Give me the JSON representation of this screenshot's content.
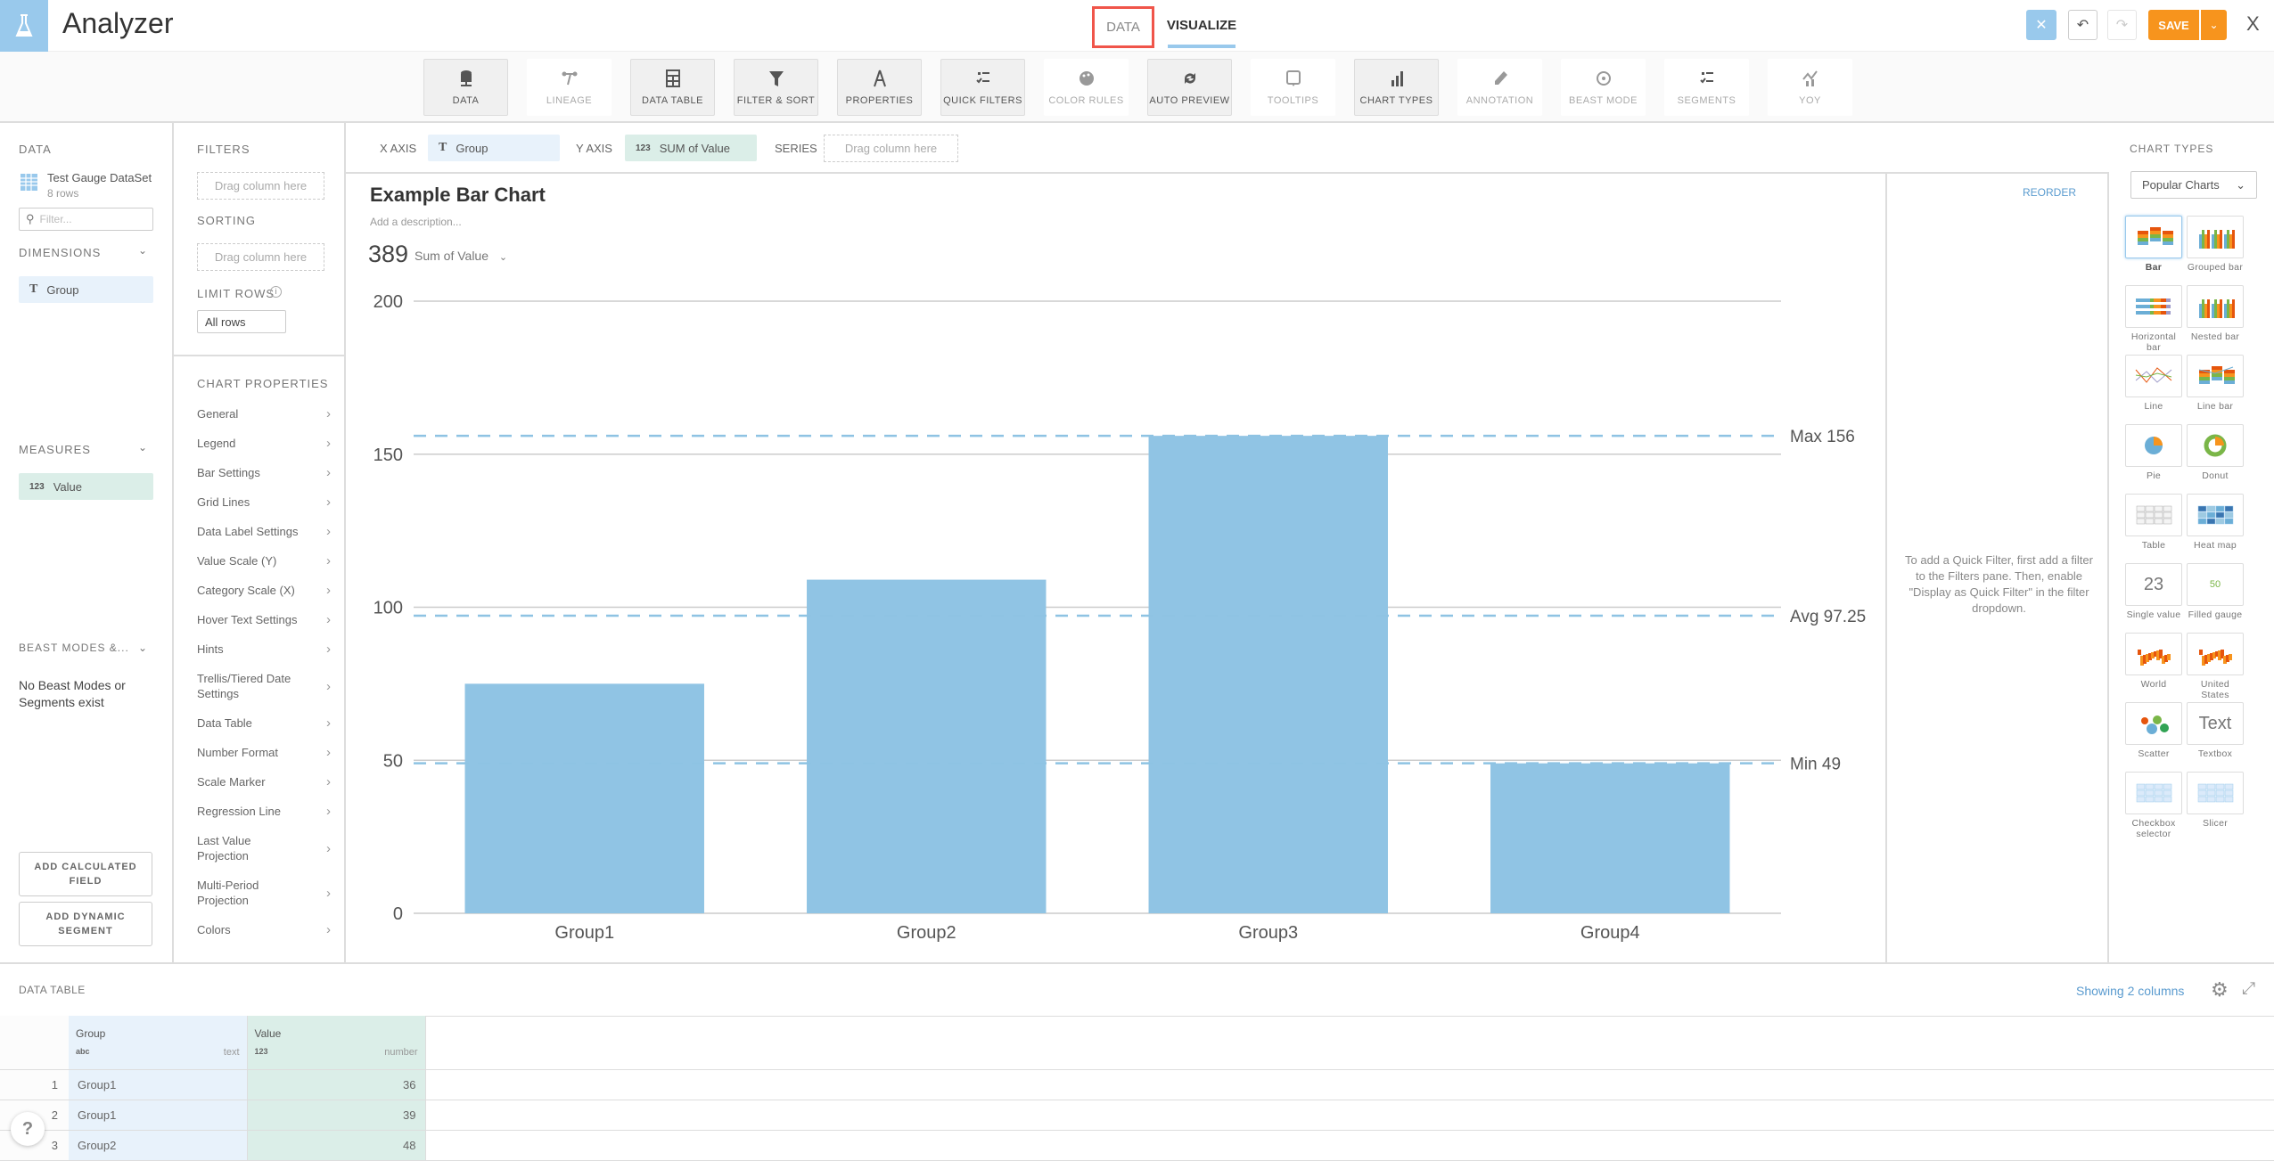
{
  "header": {
    "title": "Analyzer",
    "tabs": [
      {
        "label": "DATA"
      },
      {
        "label": "VISUALIZE",
        "active": true
      }
    ],
    "save_label": "SAVE",
    "close_label": "X"
  },
  "toolbar": [
    {
      "label": "DATA",
      "icon": "database-icon",
      "active": true
    },
    {
      "label": "LINEAGE",
      "icon": "lineage-icon",
      "active": false
    },
    {
      "label": "DATA TABLE",
      "icon": "table-icon",
      "active": true
    },
    {
      "label": "FILTER & SORT",
      "icon": "filter-icon",
      "active": true
    },
    {
      "label": "PROPERTIES",
      "icon": "compass-icon",
      "active": true
    },
    {
      "label": "QUICK FILTERS",
      "icon": "checklist-icon",
      "active": true
    },
    {
      "label": "COLOR RULES",
      "icon": "palette-icon",
      "active": false
    },
    {
      "label": "AUTO PREVIEW",
      "icon": "refresh-icon",
      "active": true
    },
    {
      "label": "TOOLTIPS",
      "icon": "tooltip-icon",
      "active": false
    },
    {
      "label": "CHART TYPES",
      "icon": "bar-chart-icon",
      "active": true
    },
    {
      "label": "ANNOTATION",
      "icon": "pencil-icon",
      "active": false
    },
    {
      "label": "BEAST MODE",
      "icon": "beast-icon",
      "active": false
    },
    {
      "label": "SEGMENTS",
      "icon": "checklist-icon",
      "active": false
    },
    {
      "label": "YOY",
      "icon": "yoy-icon",
      "active": false
    }
  ],
  "left": {
    "data_label": "DATA",
    "dataset_name": "Test Gauge DataSet",
    "dataset_rows": "8 rows",
    "filter_placeholder": "Filter...",
    "dimensions_label": "DIMENSIONS",
    "dimension": {
      "type": "T",
      "name": "Group"
    },
    "measures_label": "MEASURES",
    "measure": {
      "type": "123",
      "name": "Value"
    },
    "beast_label": "BEAST MODES &...",
    "beast_empty": "No Beast Modes or Segments exist",
    "add_calc": "ADD CALCULATED FIELD",
    "add_segment": "ADD DYNAMIC SEGMENT"
  },
  "filters": {
    "filters_label": "FILTERS",
    "drag": "Drag column here",
    "sorting_label": "SORTING",
    "limit_label": "LIMIT ROWS",
    "limit_value": "All rows",
    "props_label": "CHART PROPERTIES",
    "props": [
      "General",
      "Legend",
      "Bar Settings",
      "Grid Lines",
      "Data Label Settings",
      "Value Scale (Y)",
      "Category Scale (X)",
      "Hover Text Settings",
      "Hints",
      "Trellis/Tiered Date Settings",
      "Data Table",
      "Number Format",
      "Scale Marker",
      "Regression Line",
      "Last Value Projection",
      "Multi-Period Projection",
      "Colors"
    ]
  },
  "axes": {
    "x_label": "X AXIS",
    "x_type": "T",
    "x_value": "Group",
    "y_label": "Y AXIS",
    "y_type": "123",
    "y_value": "SUM of Value",
    "series_label": "SERIES",
    "series_placeholder": "Drag column here"
  },
  "card": {
    "title": "Example Bar Chart",
    "description": "Add a description...",
    "summary_value": "389",
    "summary_label": "Sum of Value"
  },
  "chart_data": {
    "type": "bar",
    "title": "Example Bar Chart",
    "xlabel": "",
    "ylabel": "",
    "categories": [
      "Group1",
      "Group2",
      "Group3",
      "Group4"
    ],
    "values": [
      75,
      109,
      156,
      49
    ],
    "ylim": [
      0,
      200
    ],
    "yticks": [
      0,
      50,
      100,
      150,
      200
    ],
    "grid": true,
    "bar_color": "#90c4e4",
    "reference_lines": [
      {
        "label": "Max 156",
        "value": 156
      },
      {
        "label": "Avg 97.25",
        "value": 97.25
      },
      {
        "label": "Min 49",
        "value": 49
      }
    ]
  },
  "quick_filters": {
    "reorder": "REORDER",
    "hint": "To add a Quick Filter, first add a filter to the Filters pane. Then, enable \"Display as Quick Filter\" in the filter dropdown."
  },
  "chart_types": {
    "label": "CHART TYPES",
    "dropdown": "Popular Charts",
    "items": [
      {
        "label": "Bar",
        "selected": true
      },
      {
        "label": "Grouped bar"
      },
      {
        "label": "Horizontal bar"
      },
      {
        "label": "Nested bar"
      },
      {
        "label": "Line"
      },
      {
        "label": "Line bar"
      },
      {
        "label": "Pie"
      },
      {
        "label": "Donut"
      },
      {
        "label": "Table"
      },
      {
        "label": "Heat map"
      },
      {
        "label": "Single value",
        "glyph": "23"
      },
      {
        "label": "Filled gauge",
        "glyph": "50"
      },
      {
        "label": "World"
      },
      {
        "label": "United States"
      },
      {
        "label": "Scatter"
      },
      {
        "label": "Textbox",
        "glyph": "Text"
      },
      {
        "label": "Checkbox selector"
      },
      {
        "label": "Slicer"
      }
    ]
  },
  "data_table": {
    "label": "DATA TABLE",
    "showing": "Showing 2 columns",
    "columns": [
      {
        "name": "Group",
        "type_icon": "abc",
        "type": "text"
      },
      {
        "name": "Value",
        "type_icon": "123",
        "type": "number"
      }
    ],
    "rows": [
      [
        "1",
        "Group1",
        "36"
      ],
      [
        "2",
        "Group1",
        "39"
      ],
      [
        "3",
        "Group2",
        "48"
      ]
    ]
  },
  "help": "?",
  "colors": {
    "accent": "#99c9ec",
    "save": "#f7941d",
    "highlight_box": "#f0554a",
    "dimension": "#e8f2fb",
    "measure": "#dbeee8",
    "link": "#5a9bcf"
  }
}
